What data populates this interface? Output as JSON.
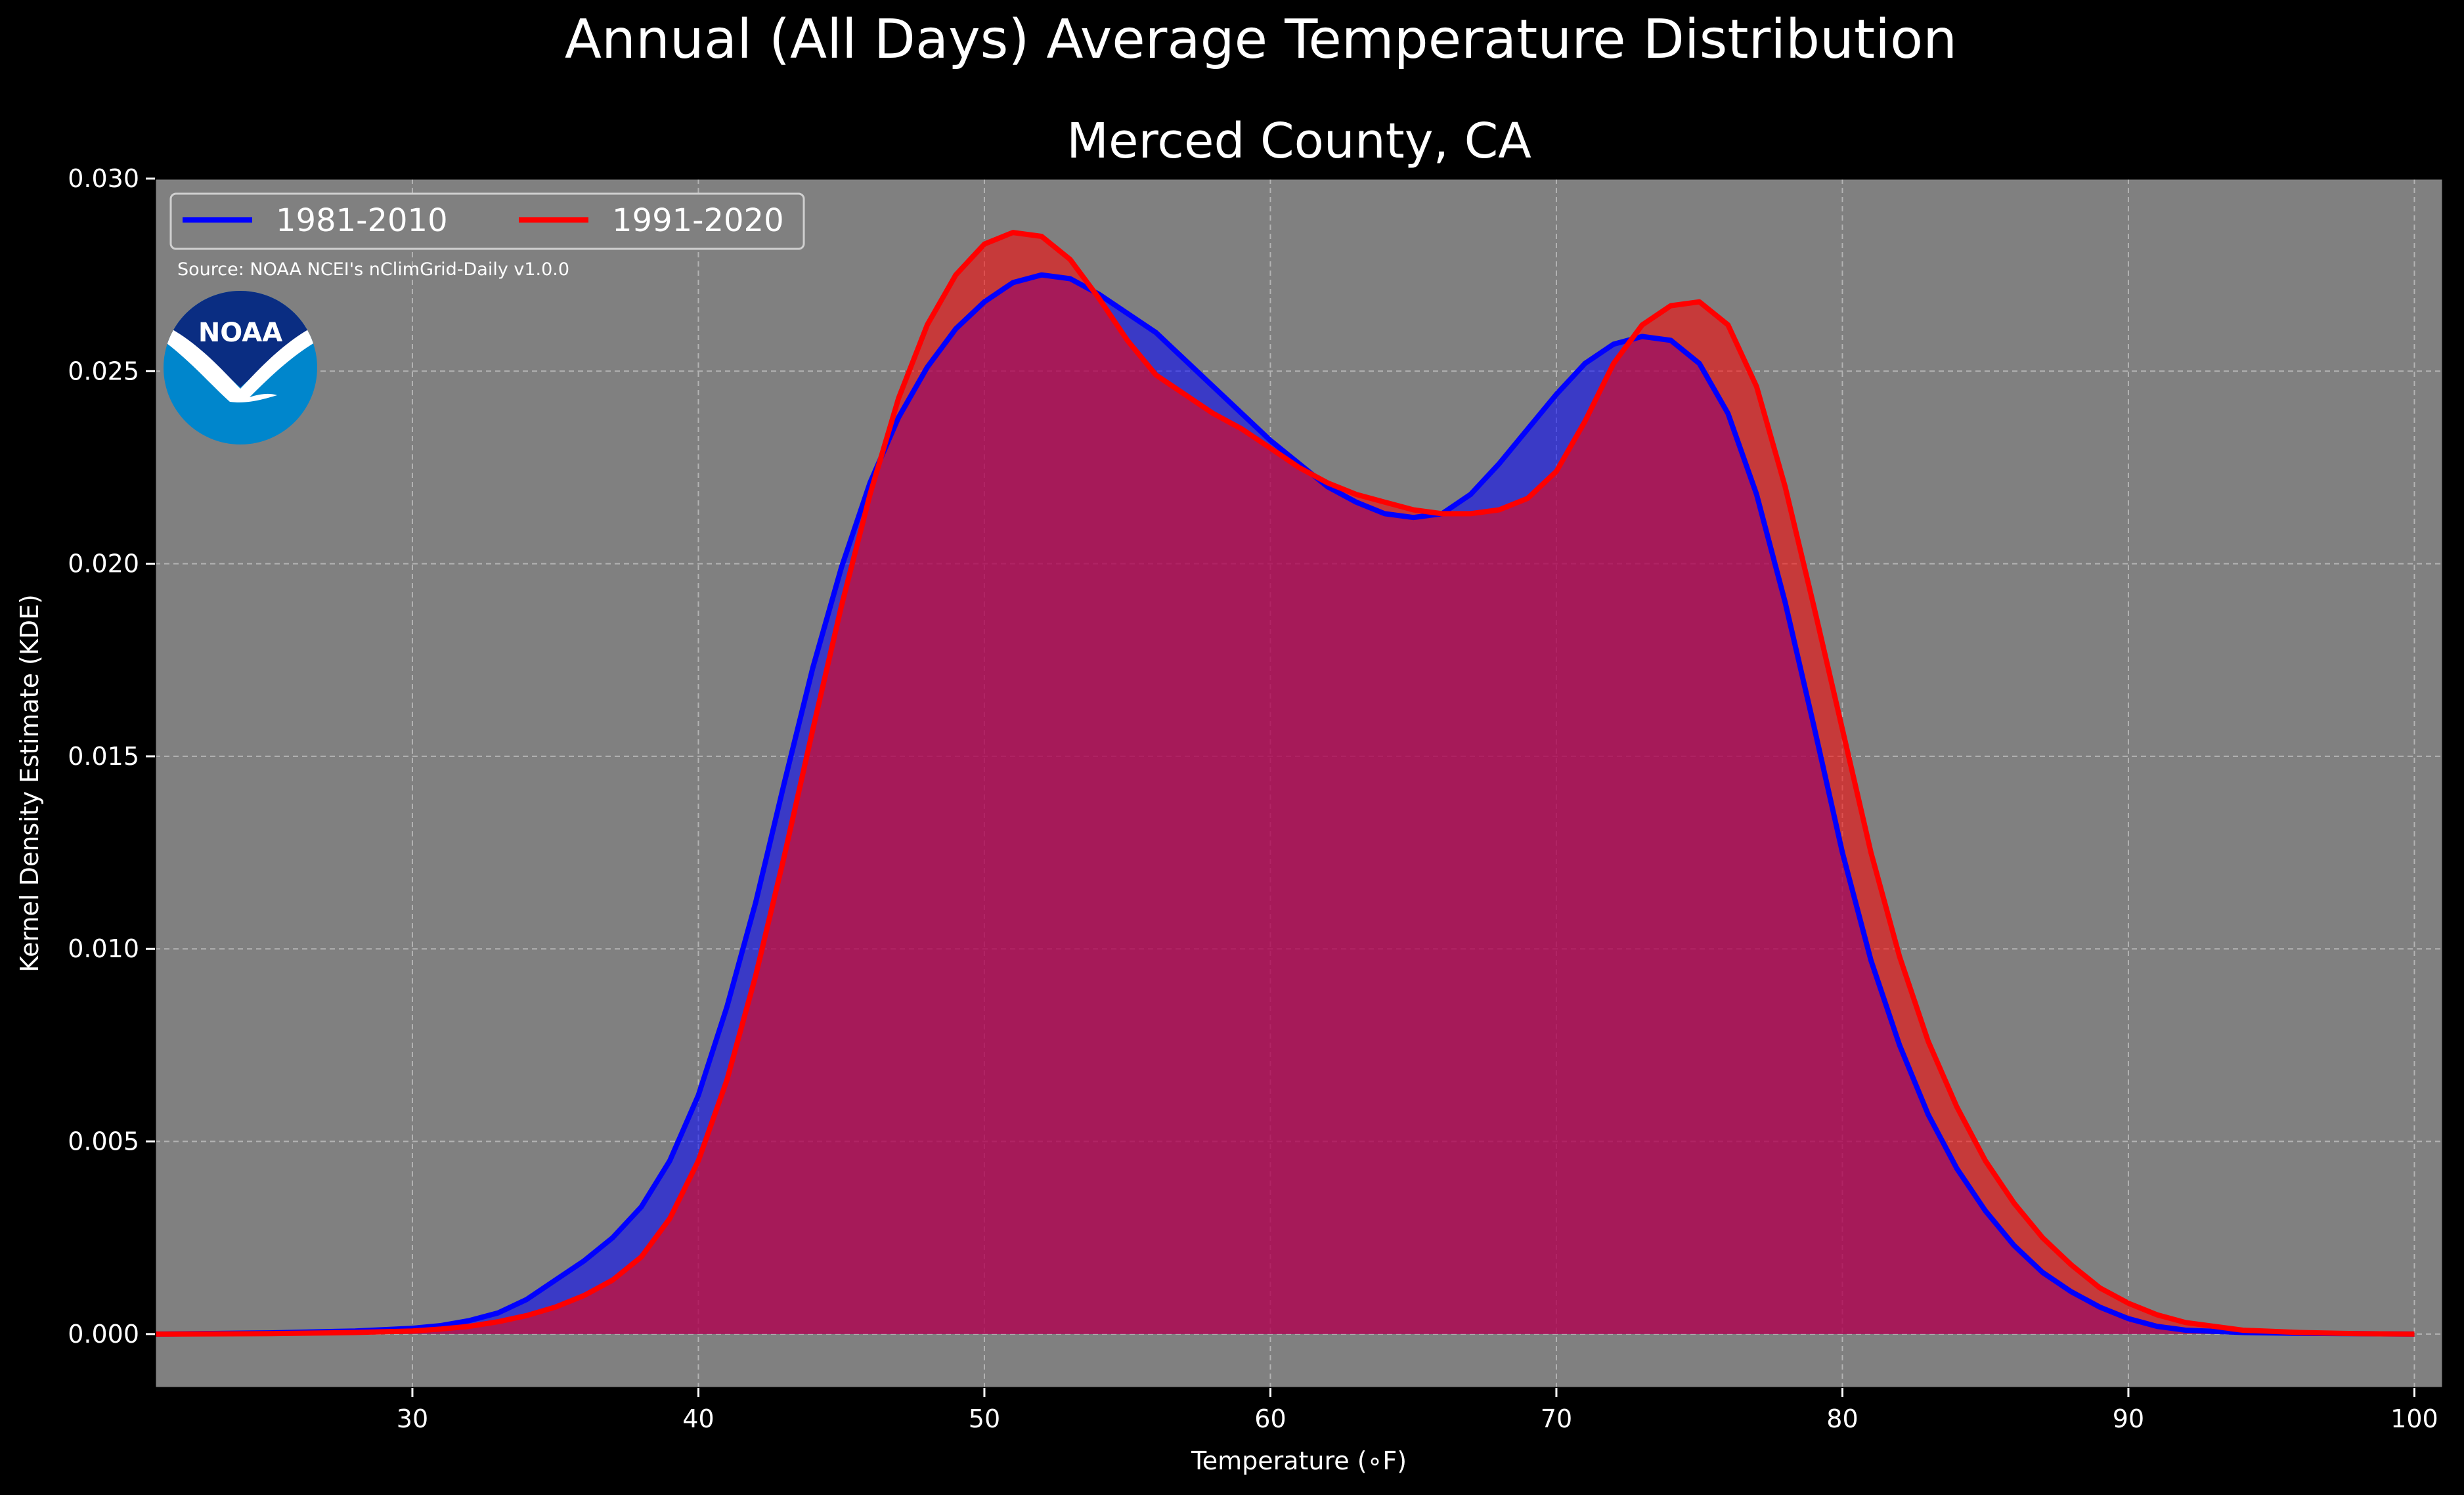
{
  "figure_title": "Annual (All Days) Average Temperature Distribution",
  "source_note": "Source: NOAA NCEI's nClimGrid-Daily v1.0.0",
  "logo": {
    "icon": "noaa-logo",
    "text": "NOAA",
    "colors": {
      "dark": "#0a2d82",
      "light": "#0086cc",
      "bird": "#ffffff"
    }
  },
  "colors": {
    "background": "#000000",
    "plot_bg": "#808080",
    "grid": "#b3b3b3",
    "text": "#ffffff"
  },
  "chart_data": {
    "type": "area",
    "title": "Merced County, CA",
    "xlabel": "Temperature (∘F)",
    "ylabel": "Kernel Density Estimate (KDE)",
    "xlim": [
      21,
      101
    ],
    "ylim": [
      -0.0014,
      0.03
    ],
    "xticks": [
      30,
      40,
      50,
      60,
      70,
      80,
      90,
      100
    ],
    "yticks": [
      0.0,
      0.005,
      0.01,
      0.015,
      0.02,
      0.025,
      0.03
    ],
    "ytick_labels": [
      "0.000",
      "0.005",
      "0.010",
      "0.015",
      "0.020",
      "0.025",
      "0.030"
    ],
    "grid": true,
    "legend_position": "top-left",
    "series": [
      {
        "name": "1981-2010",
        "color": "#0000ff",
        "fill": "#0000ff",
        "x": [
          21,
          25,
          28,
          30,
          31,
          32,
          33,
          34,
          35,
          36,
          37,
          38,
          39,
          40,
          41,
          42,
          43,
          44,
          45,
          46,
          47,
          48,
          49,
          50,
          51,
          52,
          53,
          54,
          55,
          56,
          57,
          58,
          59,
          60,
          61,
          62,
          63,
          64,
          65,
          66,
          67,
          68,
          69,
          70,
          71,
          72,
          73,
          74,
          75,
          76,
          77,
          78,
          79,
          80,
          81,
          82,
          83,
          84,
          85,
          86,
          87,
          88,
          89,
          90,
          91,
          92,
          94,
          96,
          98,
          100
        ],
        "y": [
          0.0,
          3e-05,
          8e-05,
          0.00015,
          0.00022,
          0.00035,
          0.00055,
          0.0009,
          0.0014,
          0.0019,
          0.0025,
          0.0033,
          0.0045,
          0.0062,
          0.0085,
          0.0112,
          0.0143,
          0.0173,
          0.0199,
          0.0221,
          0.0238,
          0.0251,
          0.0261,
          0.0268,
          0.0273,
          0.0275,
          0.0274,
          0.027,
          0.0265,
          0.026,
          0.0253,
          0.0246,
          0.0239,
          0.0232,
          0.0226,
          0.022,
          0.0216,
          0.0213,
          0.0212,
          0.0213,
          0.0218,
          0.0226,
          0.0235,
          0.0244,
          0.0252,
          0.0257,
          0.0259,
          0.0258,
          0.0252,
          0.0239,
          0.0218,
          0.019,
          0.0158,
          0.0125,
          0.0097,
          0.0075,
          0.0057,
          0.0043,
          0.0032,
          0.0023,
          0.0016,
          0.0011,
          0.0007,
          0.0004,
          0.0002,
          0.0001,
          4e-05,
          2e-05,
          1e-05,
          0.0
        ]
      },
      {
        "name": "1991-2020",
        "color": "#ff0000",
        "fill": "#ff0000",
        "x": [
          21,
          25,
          28,
          30,
          31,
          32,
          33,
          34,
          35,
          36,
          37,
          38,
          39,
          40,
          41,
          42,
          43,
          44,
          45,
          46,
          47,
          48,
          49,
          50,
          51,
          52,
          53,
          54,
          55,
          56,
          57,
          58,
          59,
          60,
          61,
          62,
          63,
          64,
          65,
          66,
          67,
          68,
          69,
          70,
          71,
          72,
          73,
          74,
          75,
          76,
          77,
          78,
          79,
          80,
          81,
          82,
          83,
          84,
          85,
          86,
          87,
          88,
          89,
          90,
          91,
          92,
          94,
          96,
          98,
          100
        ],
        "y": [
          0.0,
          1e-05,
          4e-05,
          8e-05,
          0.00013,
          0.0002,
          0.00032,
          0.00048,
          0.0007,
          0.001,
          0.0014,
          0.002,
          0.003,
          0.0045,
          0.0066,
          0.0093,
          0.0124,
          0.0157,
          0.0189,
          0.0218,
          0.0243,
          0.0262,
          0.0275,
          0.0283,
          0.0286,
          0.0285,
          0.0279,
          0.0269,
          0.0258,
          0.0249,
          0.0244,
          0.0239,
          0.0235,
          0.023,
          0.0225,
          0.0221,
          0.0218,
          0.0216,
          0.0214,
          0.0213,
          0.0213,
          0.0214,
          0.0217,
          0.0224,
          0.0237,
          0.0252,
          0.0262,
          0.0267,
          0.0268,
          0.0262,
          0.0246,
          0.022,
          0.0189,
          0.0157,
          0.0125,
          0.0098,
          0.0076,
          0.0059,
          0.0045,
          0.0034,
          0.0025,
          0.0018,
          0.0012,
          0.0008,
          0.0005,
          0.0003,
          0.0001,
          4e-05,
          1e-05,
          0.0
        ]
      }
    ]
  }
}
